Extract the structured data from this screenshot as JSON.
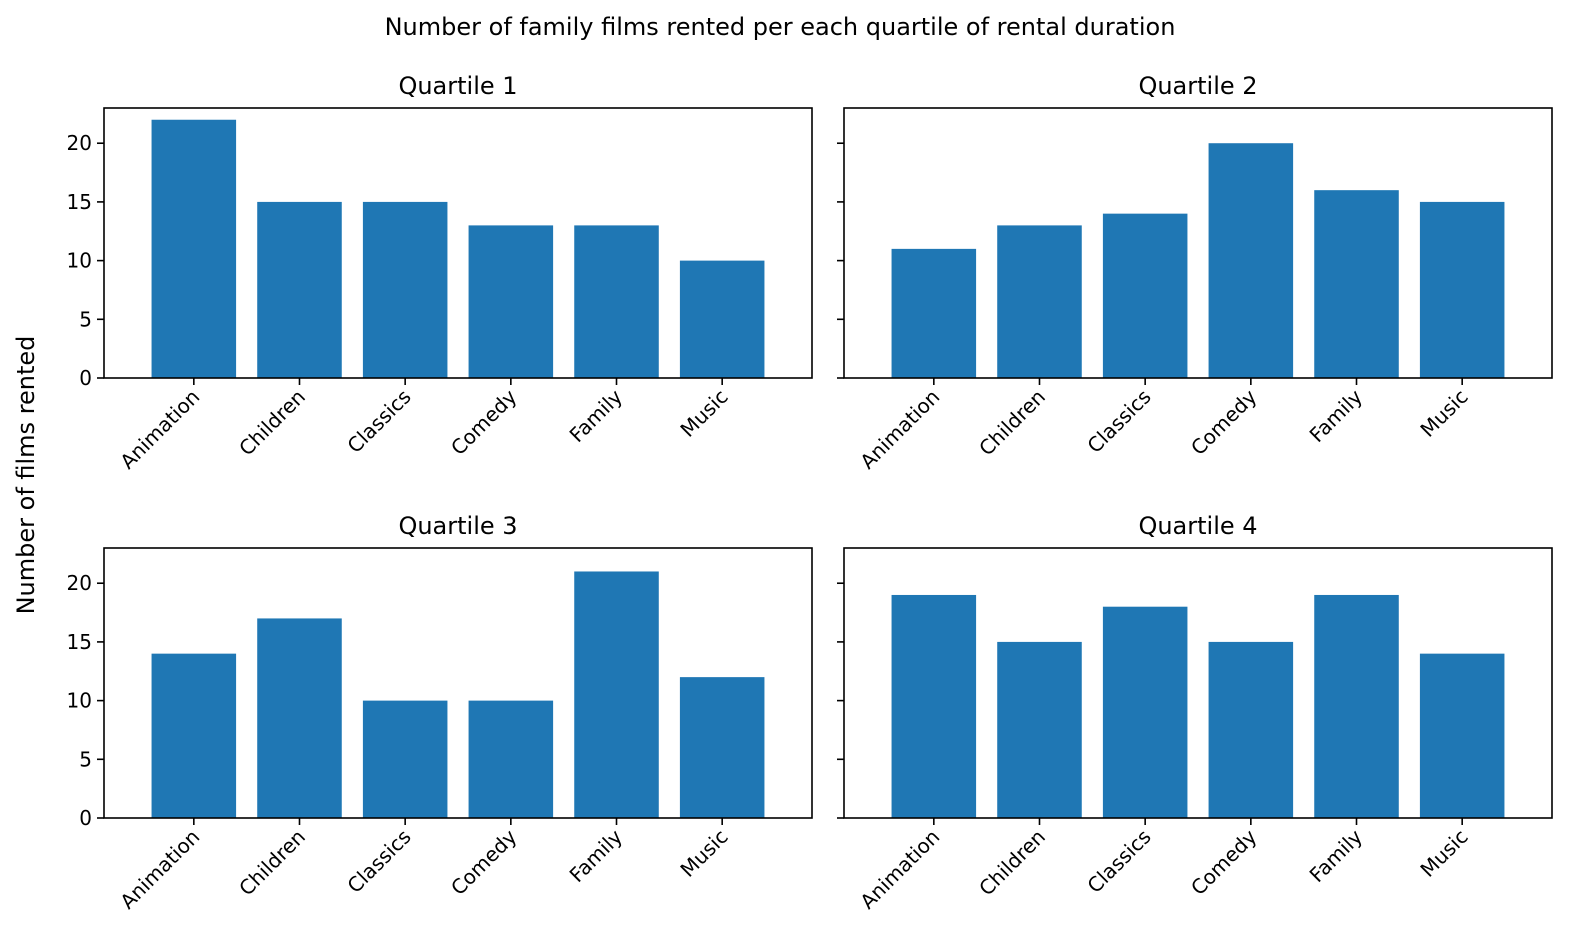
{
  "chart_data": {
    "title": "Number of family films rented per each quartile of rental duration",
    "ylabel": "Number of films rented",
    "bar_color": "#1f77b4",
    "sharey": true,
    "ylim": [
      0,
      23
    ],
    "yticks": [
      0,
      5,
      10,
      15,
      20
    ],
    "panels": [
      {
        "type": "bar",
        "title": "Quartile 1",
        "categories": [
          "Animation",
          "Children",
          "Classics",
          "Comedy",
          "Family",
          "Music"
        ],
        "values": [
          22,
          15,
          15,
          13,
          13,
          10
        ]
      },
      {
        "type": "bar",
        "title": "Quartile 2",
        "categories": [
          "Animation",
          "Children",
          "Classics",
          "Comedy",
          "Family",
          "Music"
        ],
        "values": [
          11,
          13,
          14,
          20,
          16,
          15
        ]
      },
      {
        "type": "bar",
        "title": "Quartile 3",
        "categories": [
          "Animation",
          "Children",
          "Classics",
          "Comedy",
          "Family",
          "Music"
        ],
        "values": [
          14,
          17,
          10,
          10,
          21,
          12
        ]
      },
      {
        "type": "bar",
        "title": "Quartile 4",
        "categories": [
          "Animation",
          "Children",
          "Classics",
          "Comedy",
          "Family",
          "Music"
        ],
        "values": [
          19,
          15,
          18,
          15,
          19,
          14
        ]
      }
    ]
  }
}
